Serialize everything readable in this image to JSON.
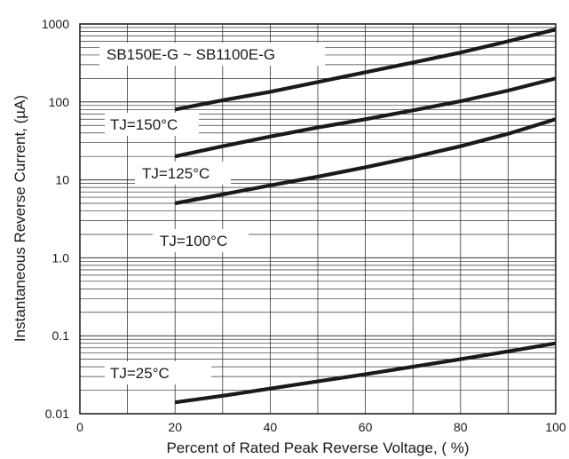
{
  "chart_data": {
    "type": "line",
    "title": "",
    "xlabel": "Percent of Rated Peak Reverse Voltage, ( %)",
    "ylabel": "Instantaneous Reverse Current, (µA)",
    "xlim": [
      0,
      100
    ],
    "ylim": [
      0.01,
      1000
    ],
    "yscale": "log",
    "grid": true,
    "x_ticks": [
      "0",
      "20",
      "40",
      "60",
      "80",
      "100"
    ],
    "y_ticks": [
      "0.01",
      "0.1",
      "1.0",
      "10",
      "100",
      "1000"
    ],
    "series": [
      {
        "x": [
          20,
          30,
          40,
          50,
          60,
          70,
          80,
          90,
          100
        ],
        "values": [
          80,
          105,
          135,
          180,
          240,
          320,
          430,
          600,
          850
        ]
      },
      {
        "x": [
          20,
          30,
          40,
          50,
          60,
          70,
          80,
          90,
          100
        ],
        "values": [
          20,
          27,
          36,
          47,
          60,
          78,
          102,
          140,
          200
        ]
      },
      {
        "x": [
          20,
          30,
          40,
          50,
          60,
          70,
          80,
          90,
          100
        ],
        "values": [
          5,
          6.5,
          8.5,
          11,
          14.5,
          19.5,
          27,
          39,
          60
        ]
      },
      {
        "x": [
          20,
          30,
          40,
          50,
          60,
          70,
          80,
          90,
          100
        ],
        "values": [
          0.014,
          0.017,
          0.021,
          0.026,
          0.032,
          0.04,
          0.05,
          0.063,
          0.08
        ]
      }
    ],
    "annotations": [
      "SB150E-G ~ SB1100E-G",
      "TJ=150°C",
      "TJ=125°C",
      "TJ=100°C",
      "TJ=25°C"
    ]
  }
}
